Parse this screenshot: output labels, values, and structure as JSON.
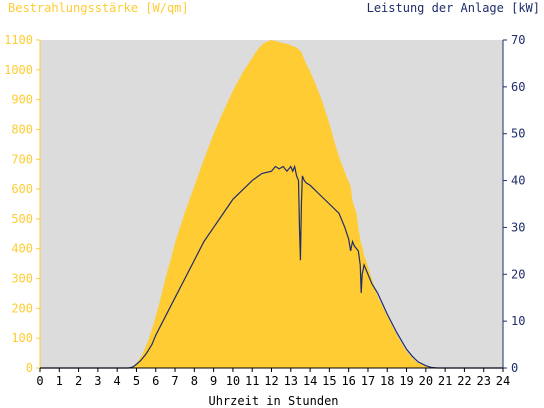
{
  "chart_data": {
    "type": "area",
    "title_left": "Bestrahlungsstärke [W/qm]",
    "title_right": "Leistung der Anlage [kW]",
    "xlabel": "Uhrzeit in Stunden",
    "x_ticks": [
      "0",
      "1",
      "2",
      "3",
      "4",
      "5",
      "6",
      "7",
      "8",
      "9",
      "10",
      "11",
      "12",
      "13",
      "14",
      "15",
      "16",
      "17",
      "18",
      "19",
      "20",
      "21",
      "22",
      "23",
      "24"
    ],
    "y_left_ticks": [
      "0",
      "100",
      "200",
      "300",
      "400",
      "500",
      "600",
      "700",
      "800",
      "900",
      "1000",
      "1100"
    ],
    "y_right_ticks": [
      "0",
      "10",
      "20",
      "30",
      "40",
      "50",
      "60",
      "70"
    ],
    "xlim": [
      0,
      24
    ],
    "ylim_left": [
      0,
      1100
    ],
    "ylim_right": [
      0,
      70
    ],
    "grid": false,
    "colors": {
      "plot_bg": "#dcdcdc",
      "irradiance": "#ffcc33",
      "power": "#1f2d6b",
      "left_axis": "#ffcc33",
      "right_axis": "#1f2d6b"
    },
    "series": [
      {
        "name": "Bestrahlungsstärke [W/qm]",
        "axis": "left",
        "type": "area",
        "x": [
          0,
          4.7,
          5.0,
          5.3,
          5.6,
          5.9,
          6.2,
          6.5,
          6.8,
          7.0,
          7.5,
          8.0,
          8.5,
          9.0,
          9.5,
          10.0,
          10.5,
          11.0,
          11.3,
          11.6,
          12.0,
          12.3,
          12.6,
          12.9,
          13.1,
          13.3,
          13.4,
          13.55,
          13.6,
          13.7,
          13.8,
          14.0,
          14.3,
          14.6,
          15.0,
          15.3,
          15.6,
          15.9,
          16.1,
          16.2,
          16.4,
          16.5,
          16.6,
          16.75,
          16.8,
          16.9,
          17.0,
          17.2,
          17.5,
          18.0,
          18.5,
          19.0,
          19.5,
          20.0,
          20.3,
          20.6,
          24
        ],
        "y": [
          0,
          0,
          15,
          45,
          90,
          150,
          220,
          300,
          370,
          420,
          520,
          610,
          700,
          785,
          860,
          930,
          990,
          1040,
          1070,
          1090,
          1100,
          1095,
          1090,
          1085,
          1080,
          1075,
          1068,
          1060,
          1050,
          1035,
          1020,
          995,
          950,
          900,
          820,
          750,
          690,
          640,
          610,
          560,
          520,
          470,
          430,
          395,
          375,
          360,
          340,
          300,
          240,
          175,
          110,
          55,
          20,
          5,
          0,
          0,
          0
        ]
      },
      {
        "name": "Leistung der Anlage [kW]",
        "axis": "right",
        "type": "line",
        "x": [
          0,
          4.6,
          4.8,
          5.0,
          5.2,
          5.5,
          5.8,
          6.0,
          6.5,
          7.0,
          7.5,
          8.0,
          8.5,
          9.0,
          9.5,
          10.0,
          10.5,
          11.0,
          11.5,
          12.0,
          12.2,
          12.4,
          12.6,
          12.8,
          13.0,
          13.1,
          13.2,
          13.3,
          13.4,
          13.45,
          13.5,
          13.55,
          13.6,
          13.7,
          13.8,
          14.0,
          14.5,
          15.0,
          15.5,
          15.8,
          16.0,
          16.1,
          16.2,
          16.3,
          16.5,
          16.6,
          16.65,
          16.7,
          16.8,
          16.9,
          17.0,
          17.2,
          17.5,
          18.0,
          18.5,
          19.0,
          19.3,
          19.6,
          20.0,
          20.3,
          20.6,
          24
        ],
        "y": [
          0,
          0,
          0.2,
          0.8,
          1.5,
          3,
          5,
          7,
          11,
          15,
          19,
          23,
          27,
          30,
          33,
          36,
          38,
          40,
          41.5,
          42,
          43,
          42.5,
          43,
          42,
          43,
          42,
          43,
          41,
          40,
          30,
          23,
          35,
          41,
          40,
          39.5,
          39,
          37,
          35,
          33,
          30,
          27.5,
          25,
          27,
          26,
          25,
          22,
          16,
          20,
          22,
          21,
          20,
          18,
          16,
          11.5,
          7.5,
          4,
          2.5,
          1.3,
          0.5,
          0.1,
          0,
          0
        ]
      }
    ]
  }
}
